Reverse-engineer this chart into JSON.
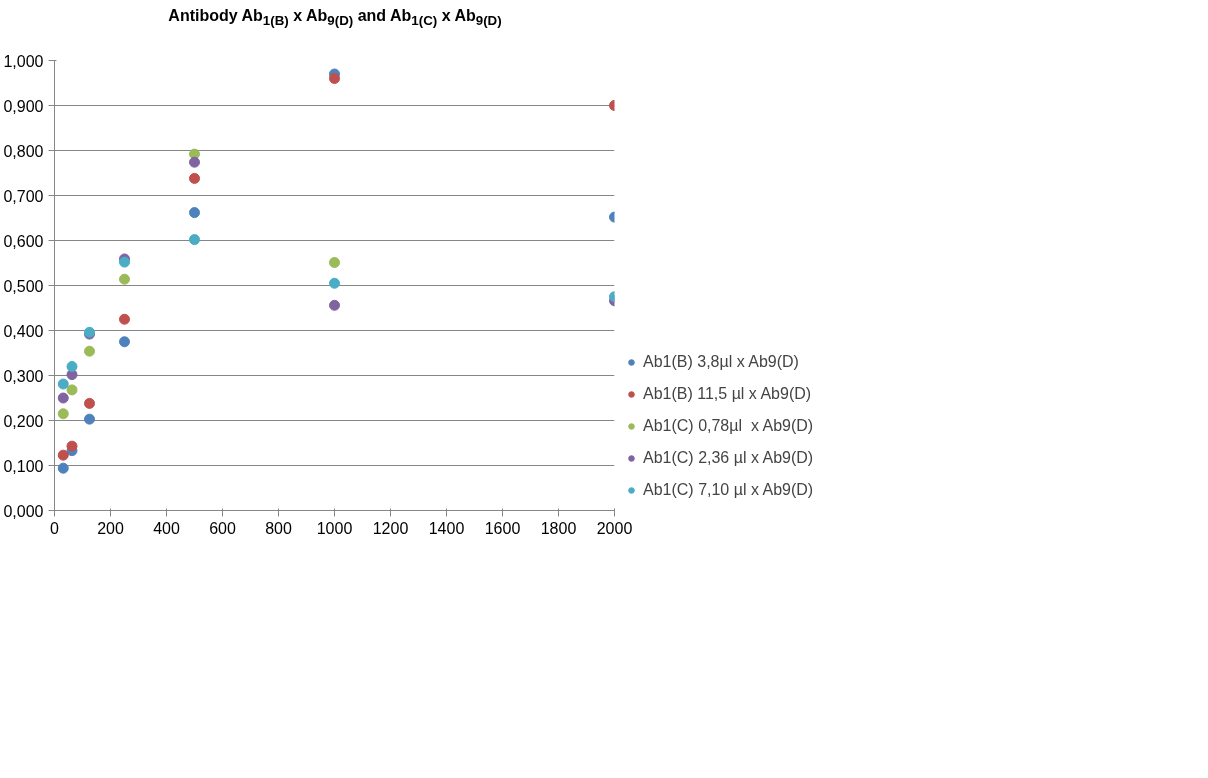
{
  "chart_data": {
    "type": "scatter",
    "title": "Antibody Ab$_{1(B)}$ x Ab$_{9(D)}$ and Ab$_{1(C)}$ x Ab$_{9(D)}$",
    "x": [
      31.25,
      62.5,
      125,
      250,
      500,
      1000,
      2000
    ],
    "xlim": [
      0,
      2000
    ],
    "xticks": [
      0,
      200,
      400,
      600,
      800,
      1000,
      1200,
      1400,
      1600,
      1800,
      2000
    ],
    "ylim": [
      0,
      1
    ],
    "yticks": [
      {
        "value": 0,
        "label": "0,000"
      },
      {
        "value": 0.1,
        "label": "0,100"
      },
      {
        "value": 0.2,
        "label": "0,200"
      },
      {
        "value": 0.3,
        "label": "0,300"
      },
      {
        "value": 0.4,
        "label": "0,400"
      },
      {
        "value": 0.5,
        "label": "0,500"
      },
      {
        "value": 0.6,
        "label": "0,600"
      },
      {
        "value": 0.7,
        "label": "0,700"
      },
      {
        "value": 0.8,
        "label": "0,800"
      },
      {
        "value": 0.9,
        "label": "0,900"
      },
      {
        "value": 1,
        "label": "1,000"
      }
    ],
    "grid": "y",
    "legend": "right",
    "marker": "circle",
    "series": [
      {
        "name": "Ab1(B) 3,8µl x Ab9(D)",
        "color": "#4f81bd",
        "values": [
          0.094,
          0.133,
          0.203,
          0.375,
          0.662,
          0.97,
          0.652
        ]
      },
      {
        "name": "Ab1(B) 11,5 µl x Ab9(D)",
        "color": "#c0504d",
        "values": [
          0.123,
          0.143,
          0.238,
          0.425,
          0.738,
          0.96,
          0.9
        ]
      },
      {
        "name": "Ab1(C) 0,78µl  x Ab9(D)",
        "color": "#9bbb59",
        "values": [
          0.215,
          0.268,
          0.354,
          0.514,
          0.792,
          0.551,
          null
        ]
      },
      {
        "name": "Ab1(C) 2,36 µl x Ab9(D)",
        "color": "#8064a2",
        "values": [
          0.25,
          0.302,
          0.392,
          0.559,
          0.774,
          0.456,
          0.466
        ]
      },
      {
        "name": "Ab1(C) 7,10 µl x Ab9(D)",
        "color": "#4bacc6",
        "values": [
          0.281,
          0.32,
          0.396,
          0.552,
          0.602,
          0.505,
          0.475
        ]
      }
    ]
  }
}
